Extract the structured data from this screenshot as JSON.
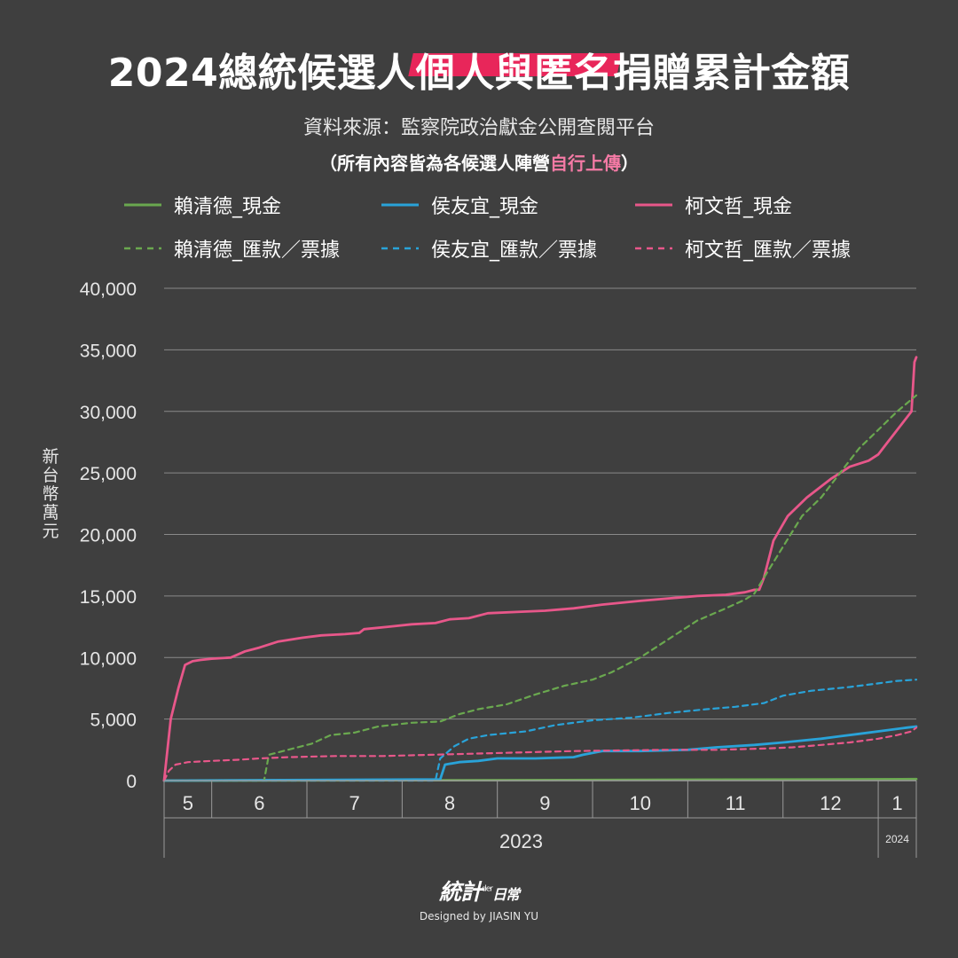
{
  "title": {
    "part1": "2024總統候選人",
    "highlight": "個人與匿名",
    "part2": "捐贈累計金額"
  },
  "source": "資料來源：監察院政治獻金公開查閱平台",
  "note": {
    "prefix": "（所有內容皆為各候選人陣營",
    "highlight": "自行上傳",
    "suffix": "）"
  },
  "colors": {
    "background": "#3f3f3f",
    "lai": "#6aa84f",
    "hou": "#29a3d9",
    "ko": "#e8578a",
    "grid": "#8a8a8a",
    "title_highlight": "#e8265a",
    "note_highlight": "#f47aa5"
  },
  "brand": {
    "logo": "統計",
    "logo_sup": "der",
    "logo_suffix": "日常",
    "credit": "Designed by JIASIN YU"
  },
  "chart_data": {
    "type": "line",
    "title": "2024總統候選人個人與匿名捐贈累計金額",
    "ylabel": "新台幣萬元",
    "ylim": [
      0,
      40000
    ],
    "yticks": [
      "0",
      "5,000",
      "10,000",
      "15,000",
      "20,000",
      "25,000",
      "30,000",
      "35,000",
      "40,000"
    ],
    "grid": true,
    "legend_position": "top",
    "x_axis": {
      "units": "month",
      "year_label": "2023",
      "year_label_2": "2024",
      "months": [
        {
          "label": "5",
          "start": 0.0,
          "end": 0.5
        },
        {
          "label": "6",
          "start": 0.5,
          "end": 1.5
        },
        {
          "label": "7",
          "start": 1.5,
          "end": 2.5
        },
        {
          "label": "8",
          "start": 2.5,
          "end": 3.5
        },
        {
          "label": "9",
          "start": 3.5,
          "end": 4.5
        },
        {
          "label": "10",
          "start": 4.5,
          "end": 5.5
        },
        {
          "label": "11",
          "start": 5.5,
          "end": 6.5
        },
        {
          "label": "12",
          "start": 6.5,
          "end": 7.5
        },
        {
          "label": "1",
          "start": 7.5,
          "end": 7.9
        }
      ],
      "domain": [
        0.0,
        7.9
      ]
    },
    "series": [
      {
        "name": "賴清德_現金",
        "color": "#6aa84f",
        "dash": false,
        "x": [
          0.0,
          3.0,
          5.0,
          7.0,
          7.9
        ],
        "y": [
          0,
          30,
          60,
          100,
          120
        ]
      },
      {
        "name": "侯友宜_現金",
        "color": "#29a3d9",
        "dash": false,
        "x": [
          0.0,
          2.9,
          2.95,
          3.1,
          3.3,
          3.5,
          3.9,
          4.3,
          4.4,
          4.6,
          5.0,
          5.5,
          5.8,
          6.0,
          6.2,
          6.5,
          6.9,
          7.1,
          7.3,
          7.6,
          7.8,
          7.9
        ],
        "y": [
          0,
          100,
          1300,
          1500,
          1600,
          1800,
          1800,
          1900,
          2100,
          2400,
          2400,
          2500,
          2700,
          2800,
          2900,
          3100,
          3400,
          3600,
          3800,
          4100,
          4300,
          4400
        ]
      },
      {
        "name": "柯文哲_現金",
        "color": "#e8578a",
        "dash": false,
        "x": [
          0.0,
          0.07,
          0.15,
          0.22,
          0.3,
          0.38,
          0.5,
          0.7,
          0.85,
          1.0,
          1.2,
          1.45,
          1.65,
          1.9,
          2.05,
          2.1,
          2.35,
          2.6,
          2.85,
          3.0,
          3.2,
          3.4,
          3.7,
          4.0,
          4.3,
          4.6,
          5.0,
          5.3,
          5.6,
          5.9,
          6.1,
          6.2,
          6.25,
          6.3,
          6.4,
          6.55,
          6.75,
          7.0,
          7.2,
          7.4,
          7.5,
          7.6,
          7.7,
          7.8,
          7.85,
          7.88,
          7.9
        ],
        "y": [
          0,
          5000,
          7500,
          9400,
          9700,
          9800,
          9900,
          10000,
          10500,
          10800,
          11300,
          11600,
          11800,
          11900,
          12000,
          12300,
          12500,
          12700,
          12800,
          13100,
          13200,
          13600,
          13700,
          13800,
          14000,
          14300,
          14600,
          14800,
          15000,
          15100,
          15300,
          15500,
          15500,
          16500,
          19500,
          21500,
          23000,
          24500,
          25500,
          26000,
          26500,
          27500,
          28500,
          29500,
          30000,
          34000,
          34400
        ]
      },
      {
        "name": "賴清德_匯款／票據",
        "color": "#6aa84f",
        "dash": true,
        "x": [
          0.0,
          1.05,
          1.1,
          1.3,
          1.55,
          1.75,
          2.0,
          2.25,
          2.6,
          2.9,
          3.1,
          3.3,
          3.6,
          3.9,
          4.2,
          4.5,
          4.7,
          5.0,
          5.3,
          5.6,
          5.9,
          6.1,
          6.2,
          6.3,
          6.5,
          6.7,
          6.9,
          7.1,
          7.3,
          7.5,
          7.7,
          7.9
        ],
        "y": [
          0,
          0,
          2100,
          2500,
          3000,
          3700,
          3900,
          4400,
          4700,
          4800,
          5400,
          5800,
          6200,
          7000,
          7700,
          8200,
          8800,
          10000,
          11500,
          13000,
          14000,
          14700,
          15200,
          16500,
          19000,
          21500,
          23000,
          25000,
          27000,
          28500,
          30000,
          31300
        ]
      },
      {
        "name": "侯友宜_匯款／票據",
        "color": "#29a3d9",
        "dash": true,
        "x": [
          0.0,
          2.85,
          2.9,
          3.05,
          3.2,
          3.4,
          3.8,
          4.1,
          4.5,
          4.9,
          5.3,
          5.7,
          6.0,
          6.3,
          6.5,
          6.8,
          7.2,
          7.5,
          7.7,
          7.9
        ],
        "y": [
          0,
          0,
          1800,
          2800,
          3400,
          3700,
          4000,
          4500,
          4900,
          5100,
          5500,
          5800,
          6000,
          6300,
          6900,
          7300,
          7600,
          7900,
          8100,
          8200
        ]
      },
      {
        "name": "柯文哲_匯款／票據",
        "color": "#e8578a",
        "dash": true,
        "x": [
          0.0,
          0.05,
          0.12,
          0.25,
          0.5,
          0.8,
          1.0,
          1.3,
          1.8,
          2.3,
          2.8,
          3.3,
          3.8,
          4.3,
          4.8,
          5.3,
          5.8,
          6.3,
          6.6,
          6.9,
          7.2,
          7.5,
          7.7,
          7.85,
          7.9
        ],
        "y": [
          0,
          800,
          1300,
          1500,
          1600,
          1700,
          1800,
          1900,
          2000,
          2000,
          2100,
          2200,
          2300,
          2400,
          2450,
          2500,
          2500,
          2600,
          2700,
          2900,
          3100,
          3400,
          3700,
          4000,
          4300
        ]
      }
    ]
  }
}
